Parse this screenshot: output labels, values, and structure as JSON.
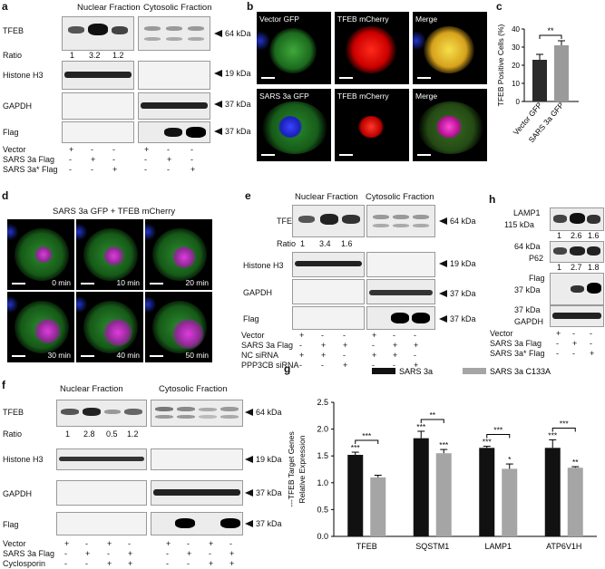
{
  "panel_labels": {
    "a": "a",
    "b": "b",
    "c": "c",
    "d": "d",
    "e": "e",
    "f": "f",
    "g": "g",
    "h": "h"
  },
  "panel_a": {
    "nuclear_title": "Nuclear Fraction",
    "cytosolic_title": "Cytosolic Fraction",
    "rows": [
      "TFEB",
      "Histone H3",
      "GAPDH",
      "Flag"
    ],
    "ratio_label": "Ratio",
    "ratios": [
      "1",
      "3.2",
      "1.2"
    ],
    "markers": [
      "64 kDa",
      "19 kDa",
      "37 kDa",
      "37 kDa"
    ],
    "conditions": [
      {
        "name": "Vector",
        "signs": [
          "+",
          "-",
          "-",
          "+",
          "-",
          "-"
        ]
      },
      {
        "name": "SARS 3a Flag",
        "signs": [
          "-",
          "+",
          "-",
          "-",
          "+",
          "-"
        ]
      },
      {
        "name": "SARS 3a* Flag",
        "signs": [
          "-",
          "-",
          "+",
          "-",
          "-",
          "+"
        ]
      }
    ]
  },
  "panel_b": {
    "row1": [
      "Vector GFP",
      "TFEB mCherry",
      "Merge"
    ],
    "row2": [
      "SARS 3a GFP",
      "TFEB mCherry",
      "Merge"
    ]
  },
  "panel_c": {
    "chart_data": {
      "type": "bar",
      "categories": [
        "Vector GFP",
        "SARS 3a GFP"
      ],
      "values": [
        23,
        31
      ],
      "errors": [
        3,
        2.5
      ],
      "ylabel": "TFEB Positive Cells (%)",
      "ylim": [
        0,
        40
      ],
      "yticks": [
        "0",
        "10",
        "20",
        "30",
        "40"
      ],
      "significance": "**",
      "colors": [
        "#2b2b2b",
        "#9a9a9a"
      ]
    }
  },
  "panel_d": {
    "title": "SARS 3a GFP + TFEB mCherry",
    "times": [
      "0 min",
      "10 min",
      "20 min",
      "30 min",
      "40 min",
      "50 min"
    ]
  },
  "panel_e": {
    "nuclear_title": "Nuclear Fraction",
    "cytosolic_title": "Cytosolic Fraction",
    "rows": [
      "TFEB",
      "Histone H3",
      "GAPDH",
      "Flag"
    ],
    "ratio_label": "Ratio",
    "ratios": [
      "1",
      "3.4",
      "1.6"
    ],
    "markers": [
      "64 kDa",
      "19 kDa",
      "37 kDa",
      "37 kDa"
    ],
    "conditions": [
      {
        "name": "Vector",
        "signs": [
          "+",
          "-",
          "-",
          "+",
          "-",
          "-"
        ]
      },
      {
        "name": "SARS 3a Flag",
        "signs": [
          "-",
          "+",
          "+",
          "-",
          "+",
          "+"
        ]
      },
      {
        "name": "NC siRNA",
        "signs": [
          "+",
          "+",
          "-",
          "+",
          "+",
          "-"
        ]
      },
      {
        "name": "PPP3CB siRNA",
        "signs": [
          "-",
          "-",
          "+",
          "-",
          "-",
          "+"
        ]
      }
    ]
  },
  "panel_f": {
    "nuclear_title": "Nuclear Fraction",
    "cytosolic_title": "Cytosolic Fraction",
    "rows": [
      "TFEB",
      "Histone H3",
      "GAPDH",
      "Flag"
    ],
    "ratio_label": "Ratio",
    "ratios": [
      "1",
      "2.8",
      "0.5",
      "1.2"
    ],
    "markers": [
      "64 kDa",
      "19 kDa",
      "37 kDa",
      "37 kDa"
    ],
    "conditions": [
      {
        "name": "Vector",
        "signs": [
          "+",
          "-",
          "+",
          "-",
          "+",
          "-",
          "+",
          "-"
        ]
      },
      {
        "name": "SARS 3a Flag",
        "signs": [
          "-",
          "+",
          "-",
          "+",
          "-",
          "+",
          "-",
          "+"
        ]
      },
      {
        "name": "Cyclosporin",
        "signs": [
          "-",
          "-",
          "+",
          "+",
          "-",
          "-",
          "+",
          "+"
        ]
      }
    ]
  },
  "panel_g": {
    "chart_data": {
      "type": "bar",
      "categories": [
        "TFEB",
        "SQSTM1",
        "LAMP1",
        "ATP6V1H"
      ],
      "series": [
        {
          "name": "SARS 3a",
          "values": [
            1.52,
            1.83,
            1.65,
            1.65
          ],
          "errors": [
            0.05,
            0.13,
            0.03,
            0.15
          ],
          "color": "#111111"
        },
        {
          "name": "SARS 3a C133A",
          "values": [
            1.1,
            1.55,
            1.26,
            1.28
          ],
          "errors": [
            0.04,
            0.07,
            0.09,
            0.02
          ],
          "color": "#a5a5a5"
        }
      ],
      "ylabel": "Relative Expression",
      "ylabel2": "---TFEB Target Genes",
      "ylim": [
        0,
        2.5
      ],
      "yticks": [
        "0.0",
        "0.5",
        "1.0",
        "1.5",
        "2.0",
        "2.5"
      ],
      "stars_series1": [
        "***",
        "***",
        "***",
        "***"
      ],
      "stars_series2": [
        "",
        "***",
        "*",
        "**"
      ],
      "bracket_stars": [
        "***",
        "**",
        "***",
        "***"
      ]
    }
  },
  "panel_h": {
    "labels_top": [
      "LAMP1",
      "115 kDa"
    ],
    "ratios_lamp1": [
      "1",
      "2.6",
      "1.6"
    ],
    "p62_labels": [
      "64 kDa",
      "P62"
    ],
    "ratios_p62": [
      "1",
      "2.7",
      "1.8"
    ],
    "flag_labels": [
      "Flag",
      "37 kDa"
    ],
    "gapdh_labels": [
      "37 kDa",
      "GAPDH"
    ],
    "conditions": [
      {
        "name": "Vector",
        "signs": [
          "+",
          "-",
          "-"
        ]
      },
      {
        "name": "SARS 3a Flag",
        "signs": [
          "-",
          "+",
          "-"
        ]
      },
      {
        "name": "SARS 3a* Flag",
        "signs": [
          "-",
          "-",
          "+"
        ]
      }
    ]
  }
}
